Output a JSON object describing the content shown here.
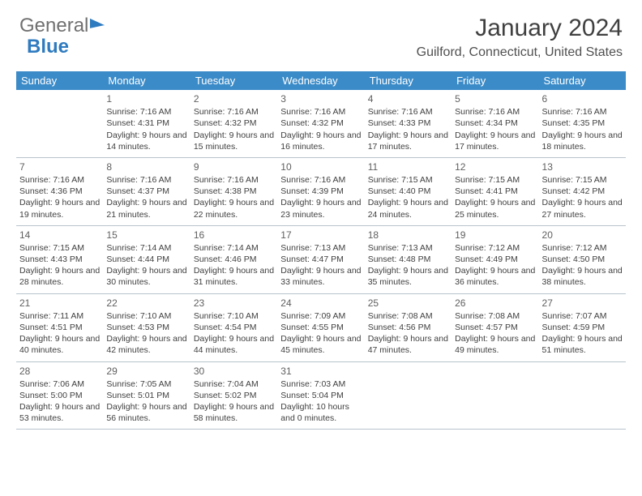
{
  "brand": {
    "part1": "General",
    "part2": "Blue"
  },
  "title": "January 2024",
  "location": "Guilford, Connecticut, United States",
  "colors": {
    "header_bg": "#3b8bc8",
    "header_text": "#ffffff",
    "body_text": "#404040",
    "rule": "#b8c4cc",
    "brand_grey": "#707070",
    "brand_blue": "#2f7bbf"
  },
  "day_headers": [
    "Sunday",
    "Monday",
    "Tuesday",
    "Wednesday",
    "Thursday",
    "Friday",
    "Saturday"
  ],
  "weeks": [
    [
      {
        "num": "",
        "sunrise": "",
        "sunset": "",
        "daylight": ""
      },
      {
        "num": "1",
        "sunrise": "Sunrise: 7:16 AM",
        "sunset": "Sunset: 4:31 PM",
        "daylight": "Daylight: 9 hours and 14 minutes."
      },
      {
        "num": "2",
        "sunrise": "Sunrise: 7:16 AM",
        "sunset": "Sunset: 4:32 PM",
        "daylight": "Daylight: 9 hours and 15 minutes."
      },
      {
        "num": "3",
        "sunrise": "Sunrise: 7:16 AM",
        "sunset": "Sunset: 4:32 PM",
        "daylight": "Daylight: 9 hours and 16 minutes."
      },
      {
        "num": "4",
        "sunrise": "Sunrise: 7:16 AM",
        "sunset": "Sunset: 4:33 PM",
        "daylight": "Daylight: 9 hours and 17 minutes."
      },
      {
        "num": "5",
        "sunrise": "Sunrise: 7:16 AM",
        "sunset": "Sunset: 4:34 PM",
        "daylight": "Daylight: 9 hours and 17 minutes."
      },
      {
        "num": "6",
        "sunrise": "Sunrise: 7:16 AM",
        "sunset": "Sunset: 4:35 PM",
        "daylight": "Daylight: 9 hours and 18 minutes."
      }
    ],
    [
      {
        "num": "7",
        "sunrise": "Sunrise: 7:16 AM",
        "sunset": "Sunset: 4:36 PM",
        "daylight": "Daylight: 9 hours and 19 minutes."
      },
      {
        "num": "8",
        "sunrise": "Sunrise: 7:16 AM",
        "sunset": "Sunset: 4:37 PM",
        "daylight": "Daylight: 9 hours and 21 minutes."
      },
      {
        "num": "9",
        "sunrise": "Sunrise: 7:16 AM",
        "sunset": "Sunset: 4:38 PM",
        "daylight": "Daylight: 9 hours and 22 minutes."
      },
      {
        "num": "10",
        "sunrise": "Sunrise: 7:16 AM",
        "sunset": "Sunset: 4:39 PM",
        "daylight": "Daylight: 9 hours and 23 minutes."
      },
      {
        "num": "11",
        "sunrise": "Sunrise: 7:15 AM",
        "sunset": "Sunset: 4:40 PM",
        "daylight": "Daylight: 9 hours and 24 minutes."
      },
      {
        "num": "12",
        "sunrise": "Sunrise: 7:15 AM",
        "sunset": "Sunset: 4:41 PM",
        "daylight": "Daylight: 9 hours and 25 minutes."
      },
      {
        "num": "13",
        "sunrise": "Sunrise: 7:15 AM",
        "sunset": "Sunset: 4:42 PM",
        "daylight": "Daylight: 9 hours and 27 minutes."
      }
    ],
    [
      {
        "num": "14",
        "sunrise": "Sunrise: 7:15 AM",
        "sunset": "Sunset: 4:43 PM",
        "daylight": "Daylight: 9 hours and 28 minutes."
      },
      {
        "num": "15",
        "sunrise": "Sunrise: 7:14 AM",
        "sunset": "Sunset: 4:44 PM",
        "daylight": "Daylight: 9 hours and 30 minutes."
      },
      {
        "num": "16",
        "sunrise": "Sunrise: 7:14 AM",
        "sunset": "Sunset: 4:46 PM",
        "daylight": "Daylight: 9 hours and 31 minutes."
      },
      {
        "num": "17",
        "sunrise": "Sunrise: 7:13 AM",
        "sunset": "Sunset: 4:47 PM",
        "daylight": "Daylight: 9 hours and 33 minutes."
      },
      {
        "num": "18",
        "sunrise": "Sunrise: 7:13 AM",
        "sunset": "Sunset: 4:48 PM",
        "daylight": "Daylight: 9 hours and 35 minutes."
      },
      {
        "num": "19",
        "sunrise": "Sunrise: 7:12 AM",
        "sunset": "Sunset: 4:49 PM",
        "daylight": "Daylight: 9 hours and 36 minutes."
      },
      {
        "num": "20",
        "sunrise": "Sunrise: 7:12 AM",
        "sunset": "Sunset: 4:50 PM",
        "daylight": "Daylight: 9 hours and 38 minutes."
      }
    ],
    [
      {
        "num": "21",
        "sunrise": "Sunrise: 7:11 AM",
        "sunset": "Sunset: 4:51 PM",
        "daylight": "Daylight: 9 hours and 40 minutes."
      },
      {
        "num": "22",
        "sunrise": "Sunrise: 7:10 AM",
        "sunset": "Sunset: 4:53 PM",
        "daylight": "Daylight: 9 hours and 42 minutes."
      },
      {
        "num": "23",
        "sunrise": "Sunrise: 7:10 AM",
        "sunset": "Sunset: 4:54 PM",
        "daylight": "Daylight: 9 hours and 44 minutes."
      },
      {
        "num": "24",
        "sunrise": "Sunrise: 7:09 AM",
        "sunset": "Sunset: 4:55 PM",
        "daylight": "Daylight: 9 hours and 45 minutes."
      },
      {
        "num": "25",
        "sunrise": "Sunrise: 7:08 AM",
        "sunset": "Sunset: 4:56 PM",
        "daylight": "Daylight: 9 hours and 47 minutes."
      },
      {
        "num": "26",
        "sunrise": "Sunrise: 7:08 AM",
        "sunset": "Sunset: 4:57 PM",
        "daylight": "Daylight: 9 hours and 49 minutes."
      },
      {
        "num": "27",
        "sunrise": "Sunrise: 7:07 AM",
        "sunset": "Sunset: 4:59 PM",
        "daylight": "Daylight: 9 hours and 51 minutes."
      }
    ],
    [
      {
        "num": "28",
        "sunrise": "Sunrise: 7:06 AM",
        "sunset": "Sunset: 5:00 PM",
        "daylight": "Daylight: 9 hours and 53 minutes."
      },
      {
        "num": "29",
        "sunrise": "Sunrise: 7:05 AM",
        "sunset": "Sunset: 5:01 PM",
        "daylight": "Daylight: 9 hours and 56 minutes."
      },
      {
        "num": "30",
        "sunrise": "Sunrise: 7:04 AM",
        "sunset": "Sunset: 5:02 PM",
        "daylight": "Daylight: 9 hours and 58 minutes."
      },
      {
        "num": "31",
        "sunrise": "Sunrise: 7:03 AM",
        "sunset": "Sunset: 5:04 PM",
        "daylight": "Daylight: 10 hours and 0 minutes."
      },
      {
        "num": "",
        "sunrise": "",
        "sunset": "",
        "daylight": ""
      },
      {
        "num": "",
        "sunrise": "",
        "sunset": "",
        "daylight": ""
      },
      {
        "num": "",
        "sunrise": "",
        "sunset": "",
        "daylight": ""
      }
    ]
  ]
}
